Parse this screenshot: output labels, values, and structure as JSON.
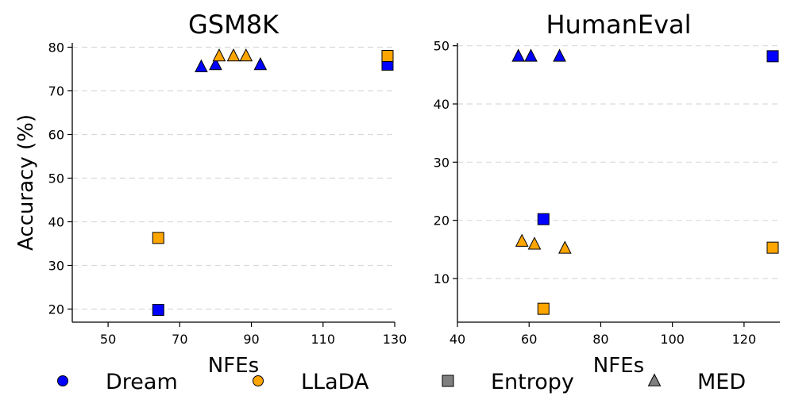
{
  "chart_data": [
    {
      "type": "scatter",
      "title": "GSM8K",
      "xlabel": "NFEs",
      "ylabel": "Accuracy (%)",
      "xlim": [
        40,
        130
      ],
      "ylim": [
        17,
        81
      ],
      "xticks": [
        50,
        70,
        90,
        110,
        130
      ],
      "yticks": [
        20,
        30,
        40,
        50,
        60,
        70,
        80
      ],
      "grid": "y-dashed",
      "points": [
        {
          "model": "Dream",
          "method": "Entropy",
          "x": 64,
          "y": 19.8
        },
        {
          "model": "Dream",
          "method": "Entropy",
          "x": 128,
          "y": 76
        },
        {
          "model": "LLaDA",
          "method": "Entropy",
          "x": 64,
          "y": 36.3
        },
        {
          "model": "LLaDA",
          "method": "Entropy",
          "x": 128,
          "y": 78
        },
        {
          "model": "Dream",
          "method": "MED",
          "x": 76,
          "y": 75.5
        },
        {
          "model": "Dream",
          "method": "MED",
          "x": 80,
          "y": 76
        },
        {
          "model": "Dream",
          "method": "MED",
          "x": 92.5,
          "y": 76
        },
        {
          "model": "LLaDA",
          "method": "MED",
          "x": 81,
          "y": 78
        },
        {
          "model": "LLaDA",
          "method": "MED",
          "x": 85,
          "y": 78
        },
        {
          "model": "LLaDA",
          "method": "MED",
          "x": 88.5,
          "y": 78
        }
      ]
    },
    {
      "type": "scatter",
      "title": "HumanEval",
      "xlabel": "NFEs",
      "ylabel": "",
      "xlim": [
        40,
        130
      ],
      "ylim": [
        2.5,
        50.5
      ],
      "xticks": [
        40,
        60,
        80,
        100,
        120
      ],
      "yticks": [
        10,
        20,
        30,
        40,
        50
      ],
      "grid": "y-dashed",
      "points": [
        {
          "model": "Dream",
          "method": "Entropy",
          "x": 64,
          "y": 20.2
        },
        {
          "model": "Dream",
          "method": "Entropy",
          "x": 128,
          "y": 48.2
        },
        {
          "model": "LLaDA",
          "method": "Entropy",
          "x": 64,
          "y": 4.8
        },
        {
          "model": "LLaDA",
          "method": "Entropy",
          "x": 128,
          "y": 15.3
        },
        {
          "model": "Dream",
          "method": "MED",
          "x": 57,
          "y": 48.2
        },
        {
          "model": "Dream",
          "method": "MED",
          "x": 60.5,
          "y": 48.2
        },
        {
          "model": "Dream",
          "method": "MED",
          "x": 68.5,
          "y": 48.2
        },
        {
          "model": "LLaDA",
          "method": "MED",
          "x": 58,
          "y": 16.4
        },
        {
          "model": "LLaDA",
          "method": "MED",
          "x": 61.5,
          "y": 15.9
        },
        {
          "model": "LLaDA",
          "method": "MED",
          "x": 70,
          "y": 15.2
        }
      ]
    }
  ],
  "legend": {
    "placement": "bottom",
    "entries": [
      {
        "label": "Dream",
        "marker": "circle",
        "color": "#0000ff"
      },
      {
        "label": "LLaDA",
        "marker": "circle",
        "color": "#ffa500"
      },
      {
        "label": "Entropy",
        "marker": "square",
        "color": "#808080"
      },
      {
        "label": "MED",
        "marker": "triangle",
        "color": "#808080"
      }
    ]
  },
  "colors": {
    "Dream": "#0000ff",
    "LLaDA": "#ffa500"
  },
  "markers": {
    "Entropy": "square",
    "MED": "triangle"
  }
}
